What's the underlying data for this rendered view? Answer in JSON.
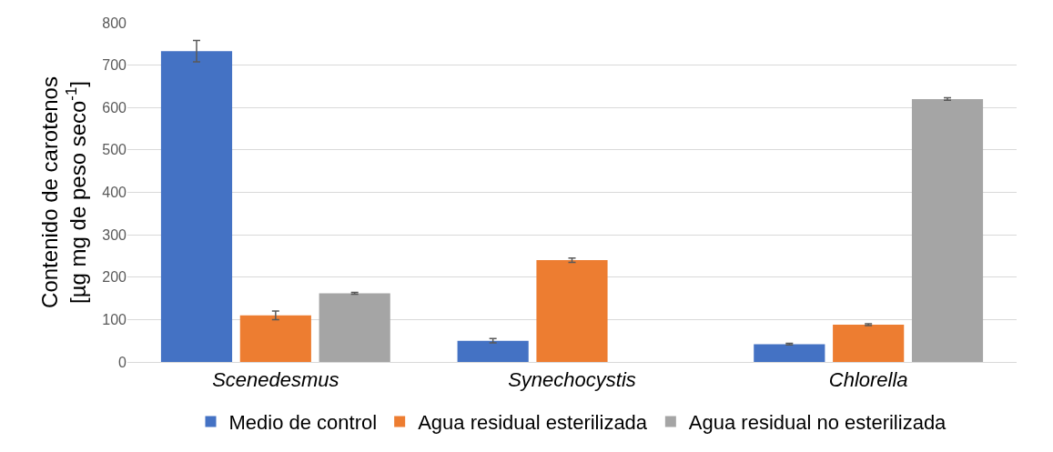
{
  "chart_data": {
    "type": "bar",
    "ylabel": "Contenido de carotenos\n[µg mg de peso seco$^{-1}$]",
    "categories": [
      "Scenedesmus",
      "Synechocystis",
      "Chlorella"
    ],
    "series": [
      {
        "name": "Medio de control",
        "color": "#4472c4",
        "values": [
          733,
          50,
          42
        ],
        "errors": [
          25,
          5,
          2
        ]
      },
      {
        "name": "Agua residual esterilizada",
        "color": "#ed7d31",
        "values": [
          110,
          240,
          88
        ],
        "errors": [
          10,
          5,
          2
        ]
      },
      {
        "name": "Agua residual no esterilizada",
        "color": "#a5a5a5",
        "values": [
          162,
          null,
          620
        ],
        "errors": [
          2,
          null,
          3
        ]
      }
    ],
    "ylim": [
      0,
      800
    ],
    "yticks": [
      0,
      100,
      200,
      300,
      400,
      500,
      600,
      700,
      800
    ],
    "grid": "y",
    "legend": "bottom"
  }
}
